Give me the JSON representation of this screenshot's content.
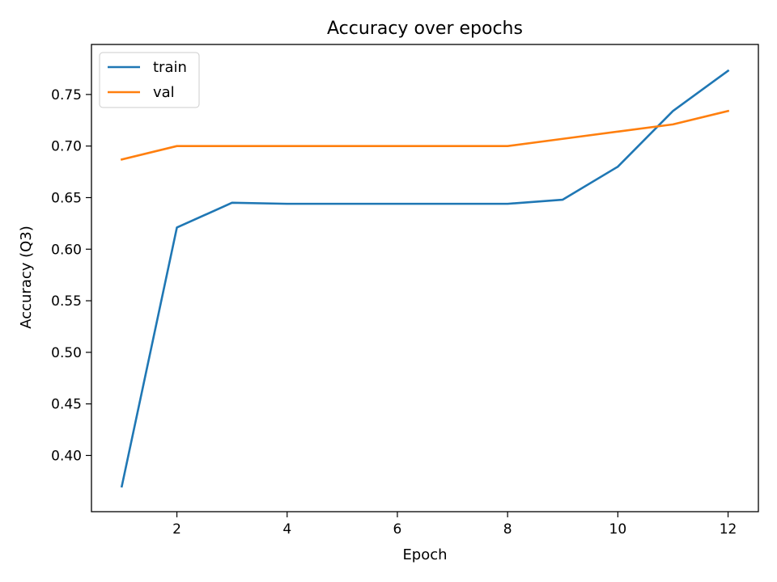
{
  "chart_data": {
    "type": "line",
    "title": "Accuracy over epochs",
    "xlabel": "Epoch",
    "ylabel": "Accuracy (Q3)",
    "xlim": [
      0.45,
      12.55
    ],
    "ylim": [
      0.3455,
      0.7985
    ],
    "xticks": [
      2,
      4,
      6,
      8,
      10,
      12
    ],
    "yticks": [
      0.4,
      0.45,
      0.5,
      0.55,
      0.6,
      0.65,
      0.7,
      0.75
    ],
    "xtick_labels": [
      "2",
      "4",
      "6",
      "8",
      "10",
      "12"
    ],
    "ytick_labels": [
      "0.40",
      "0.45",
      "0.50",
      "0.55",
      "0.60",
      "0.65",
      "0.70",
      "0.75"
    ],
    "grid": false,
    "legend": "upper-left",
    "x": [
      1,
      2,
      3,
      4,
      5,
      6,
      7,
      8,
      9,
      10,
      11,
      12
    ],
    "series": [
      {
        "name": "train",
        "color": "#1f77b4",
        "values": [
          0.37,
          0.621,
          0.645,
          0.644,
          0.644,
          0.644,
          0.644,
          0.644,
          0.648,
          0.68,
          0.734,
          0.773
        ]
      },
      {
        "name": "val",
        "color": "#ff7f0e",
        "values": [
          0.687,
          0.7,
          0.7,
          0.7,
          0.7,
          0.7,
          0.7,
          0.7,
          0.707,
          0.714,
          0.721,
          0.734
        ]
      }
    ]
  }
}
